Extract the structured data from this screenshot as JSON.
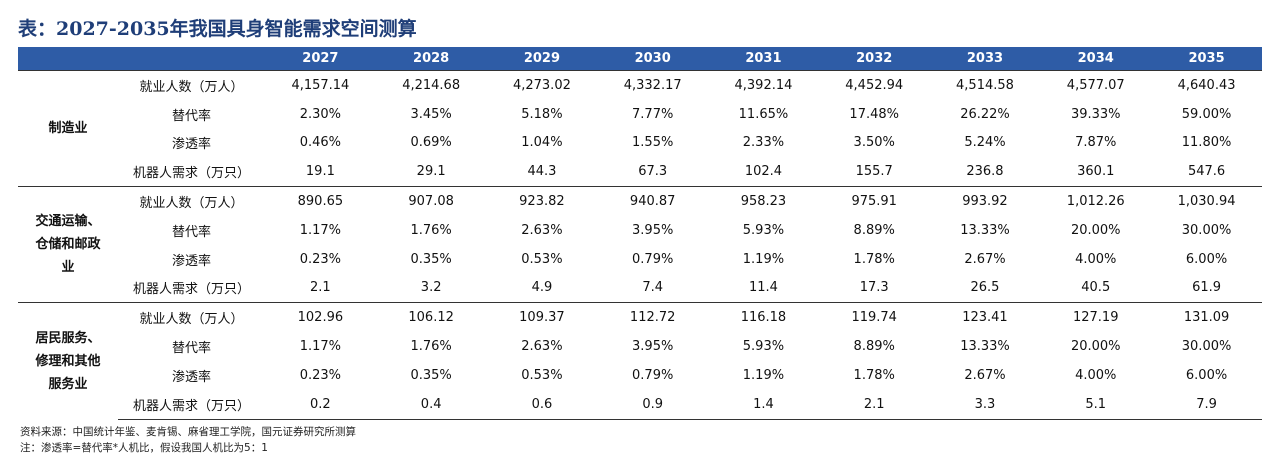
{
  "title": "表：2027-2035年我国具身智能需求空间测算",
  "table": {
    "header": [
      "2027",
      "2028",
      "2029",
      "2030",
      "2031",
      "2032",
      "2033",
      "2034",
      "2035"
    ],
    "sections": [
      {
        "label": "制造业",
        "rows": [
          {
            "label": "就业人数（万人）",
            "values": [
              "4,157.14",
              "4,214.68",
              "4,273.02",
              "4,332.17",
              "4,392.14",
              "4,452.94",
              "4,514.58",
              "4,577.07",
              "4,640.43"
            ]
          },
          {
            "label": "替代率",
            "values": [
              "2.30%",
              "3.45%",
              "5.18%",
              "7.77%",
              "11.65%",
              "17.48%",
              "26.22%",
              "39.33%",
              "59.00%"
            ]
          },
          {
            "label": "渗透率",
            "values": [
              "0.46%",
              "0.69%",
              "1.04%",
              "1.55%",
              "2.33%",
              "3.50%",
              "5.24%",
              "7.87%",
              "11.80%"
            ]
          },
          {
            "label": "机器人需求（万只）",
            "values": [
              "19.1",
              "29.1",
              "44.3",
              "67.3",
              "102.4",
              "155.7",
              "236.8",
              "360.1",
              "547.6"
            ]
          }
        ]
      },
      {
        "label": "交通运输、仓储和邮政业",
        "rows": [
          {
            "label": "就业人数（万人）",
            "values": [
              "890.65",
              "907.08",
              "923.82",
              "940.87",
              "958.23",
              "975.91",
              "993.92",
              "1,012.26",
              "1,030.94"
            ]
          },
          {
            "label": "替代率",
            "values": [
              "1.17%",
              "1.76%",
              "2.63%",
              "3.95%",
              "5.93%",
              "8.89%",
              "13.33%",
              "20.00%",
              "30.00%"
            ]
          },
          {
            "label": "渗透率",
            "values": [
              "0.23%",
              "0.35%",
              "0.53%",
              "0.79%",
              "1.19%",
              "1.78%",
              "2.67%",
              "4.00%",
              "6.00%"
            ]
          },
          {
            "label": "机器人需求（万只）",
            "values": [
              "2.1",
              "3.2",
              "4.9",
              "7.4",
              "11.4",
              "17.3",
              "26.5",
              "40.5",
              "61.9"
            ]
          }
        ]
      },
      {
        "label": "居民服务、修理和其他服务业",
        "rows": [
          {
            "label": "就业人数（万人）",
            "values": [
              "102.96",
              "106.12",
              "109.37",
              "112.72",
              "116.18",
              "119.74",
              "123.41",
              "127.19",
              "131.09"
            ]
          },
          {
            "label": "替代率",
            "values": [
              "1.17%",
              "1.76%",
              "2.63%",
              "3.95%",
              "5.93%",
              "8.89%",
              "13.33%",
              "20.00%",
              "30.00%"
            ]
          },
          {
            "label": "渗透率",
            "values": [
              "0.23%",
              "0.35%",
              "0.53%",
              "0.79%",
              "1.19%",
              "1.78%",
              "2.67%",
              "4.00%",
              "6.00%"
            ]
          },
          {
            "label": "机器人需求（万只）",
            "values": [
              "0.2",
              "0.4",
              "0.6",
              "0.9",
              "1.4",
              "2.1",
              "3.3",
              "5.1",
              "7.9"
            ]
          }
        ]
      }
    ]
  },
  "notes": [
    "资料来源：中国统计年鉴、麦肯锡、麻省理工学院，国元证券研究所测算",
    "注：渗透率=替代率*人机比，假设我国人机比为5：1"
  ]
}
